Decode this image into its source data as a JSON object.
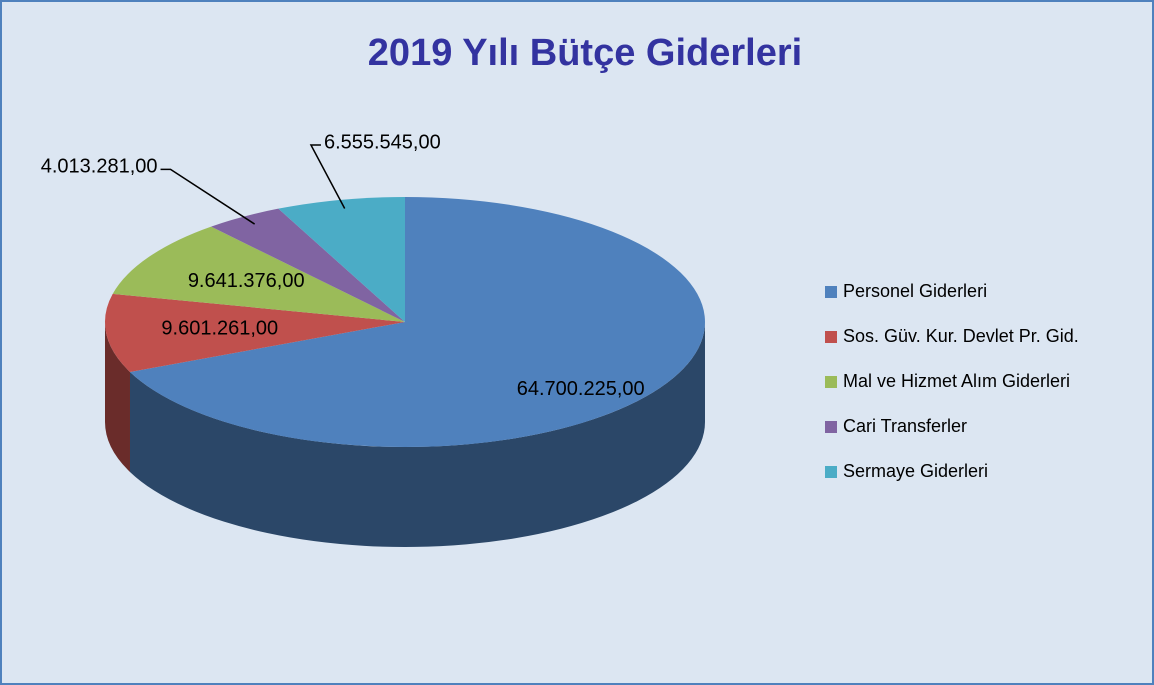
{
  "chart_data": {
    "type": "pie",
    "title": "2019 Yılı Bütçe Giderleri",
    "categories": [
      "Personel Giderleri",
      "Sos. Güv. Kur. Devlet Pr. Gid.",
      "Mal ve Hizmet Alım Giderleri",
      "Cari Transferler",
      "Sermaye Giderleri"
    ],
    "values": [
      64700225,
      9601261,
      9641376,
      4013281,
      6555545
    ],
    "value_labels": [
      "64.700.225,00",
      "9.601.261,00",
      "9.641.376,00",
      "4.013.281,00",
      "6.555.545,00"
    ],
    "colors": [
      "#4f81bd",
      "#c0504d",
      "#9bbb59",
      "#8064a2",
      "#4bacc6"
    ],
    "legend": "right"
  }
}
